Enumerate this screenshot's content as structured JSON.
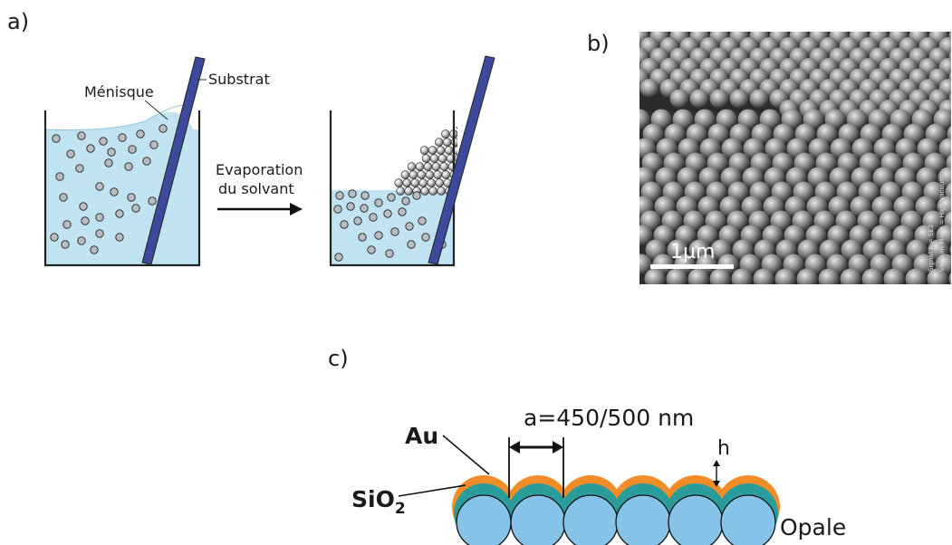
{
  "panel_a": {
    "label": "a)",
    "meniscus_label": "Ménisque",
    "substrate_label": "Substrat",
    "arrow_label_line1": "Evaporation",
    "arrow_label_line2": "du solvant"
  },
  "panel_b": {
    "label": "b)",
    "scale_bar_label": "1µm",
    "micrograph_side_text_1": "Signal A = SE2",
    "micrograph_side_text_2": "Vacuum Mode = High Vacuum"
  },
  "panel_c": {
    "label": "c)",
    "gold_label": "Au",
    "silica_label_main": "SiO",
    "silica_label_sub": "2",
    "period_label": "a=450/500 nm",
    "thickness_label": "h",
    "opal_label": "Opale"
  },
  "colors": {
    "liquid": "#bfe3f0",
    "substrate": "#3d4a9c",
    "sphere_fill": "#b9bcc0",
    "gold": "#f28c28",
    "silica": "#2a9d9a",
    "opal": "#86c3e8"
  }
}
